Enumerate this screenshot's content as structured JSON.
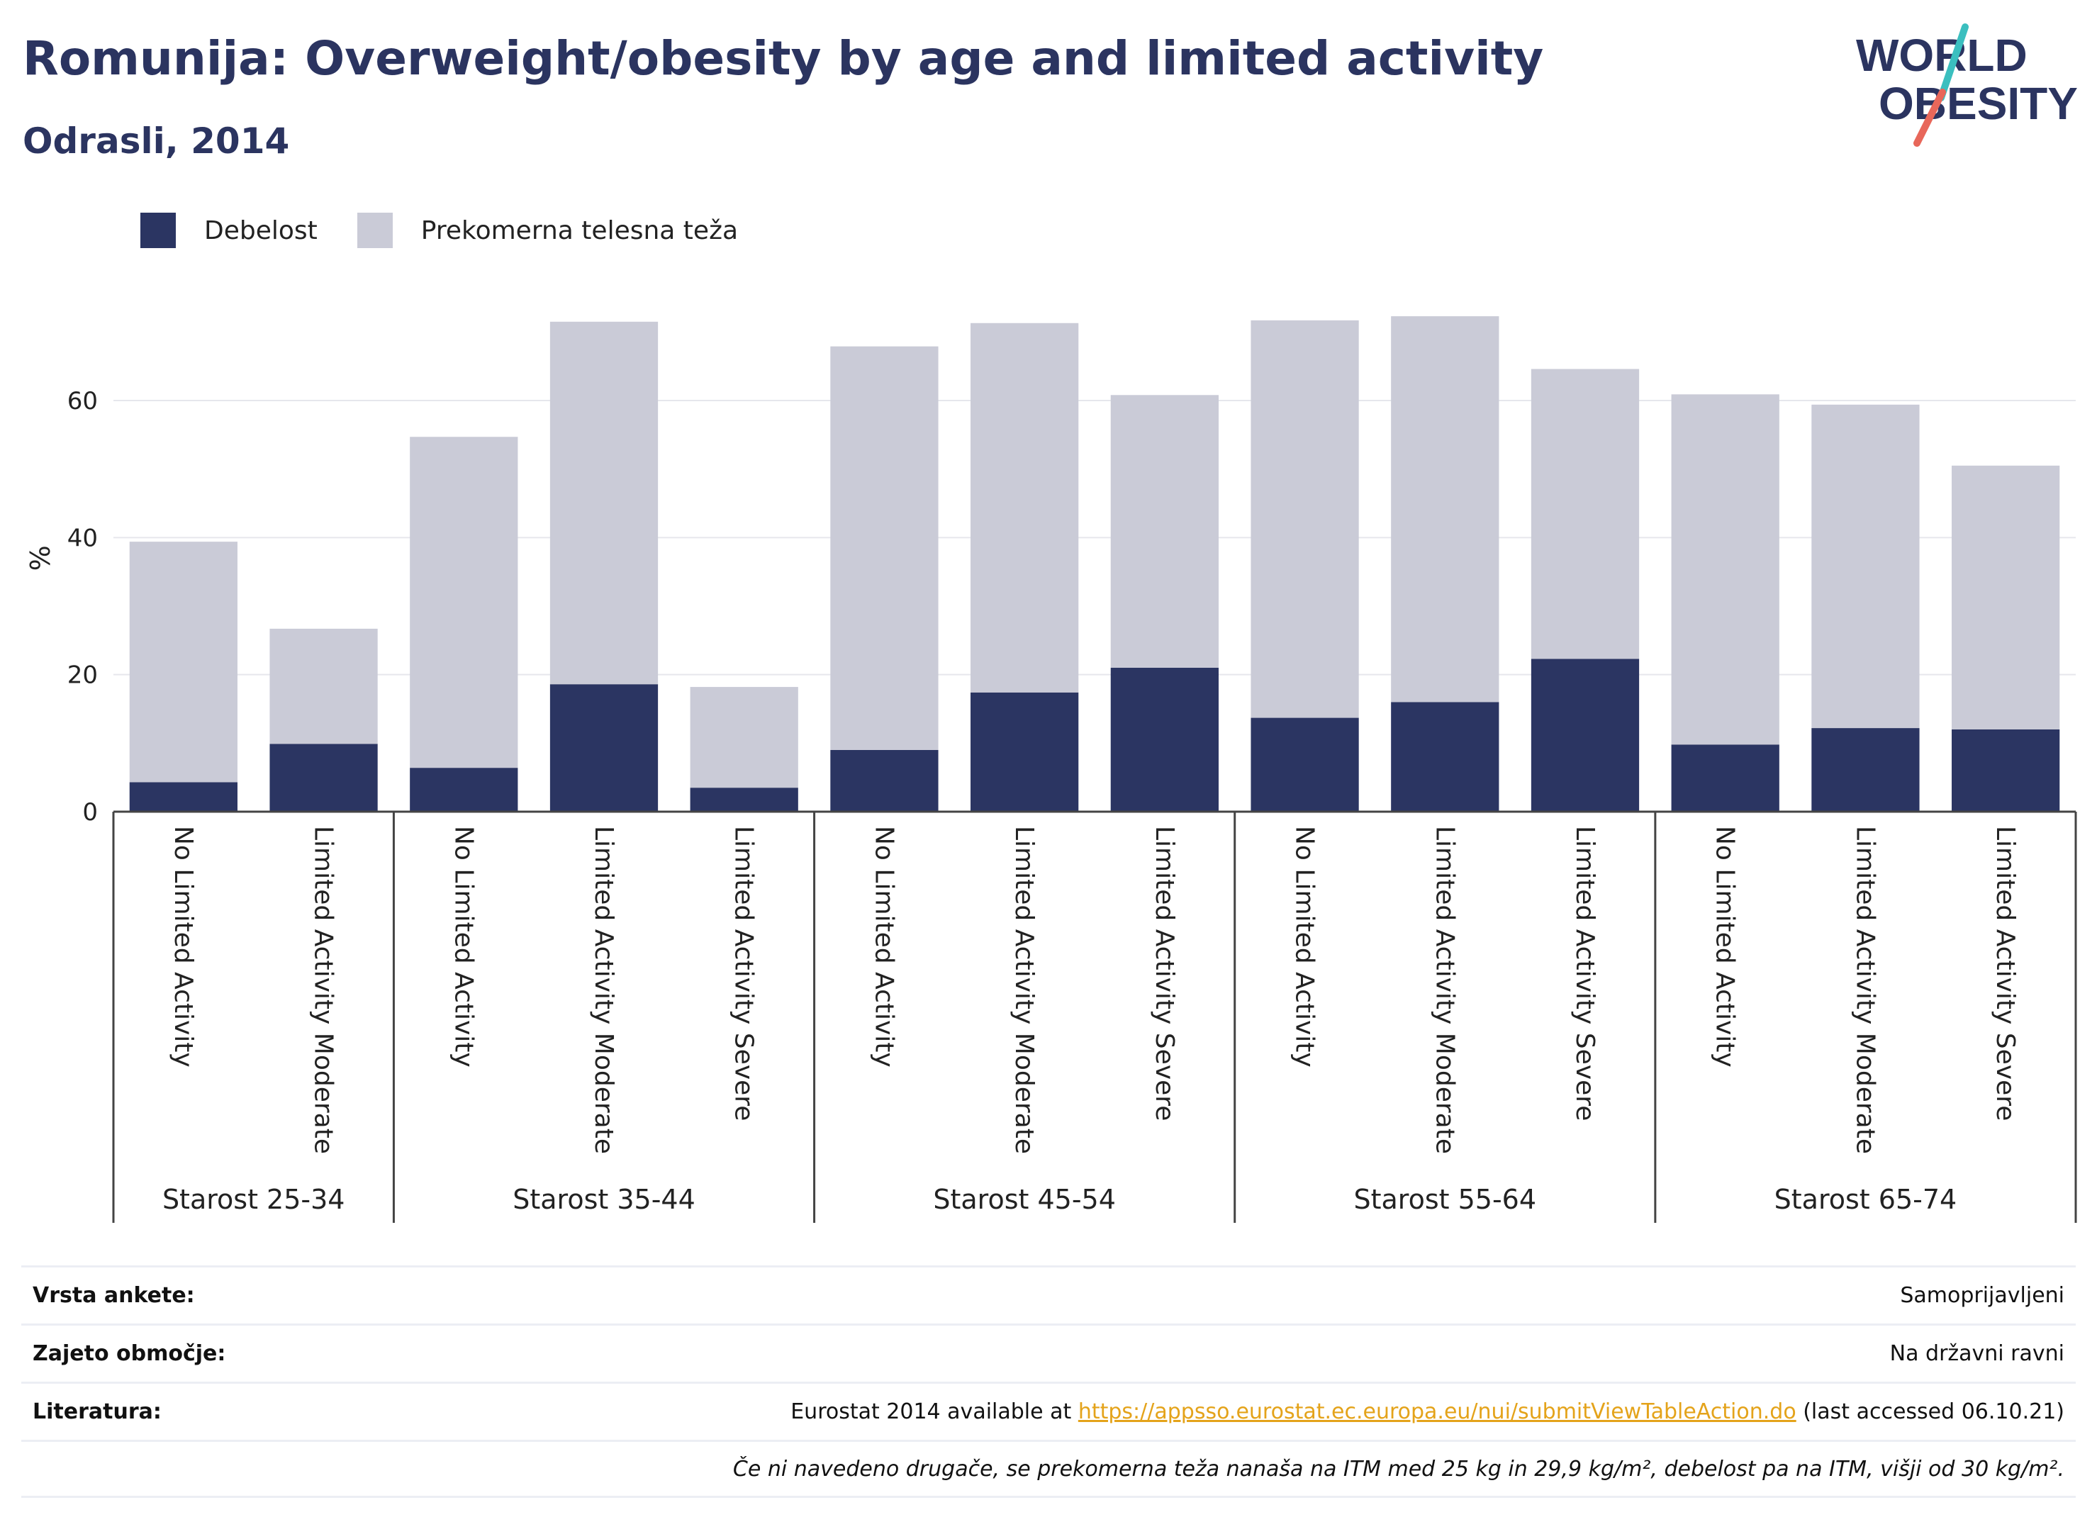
{
  "header": {
    "title": "Romunija: Overweight/obesity by age and limited activity",
    "subtitle": "Odrasli, 2014"
  },
  "logo": {
    "line1": "WORLD",
    "line2": "OBESITY"
  },
  "legend": [
    {
      "label": "Debelost",
      "color": "#2b3562"
    },
    {
      "label": "Prekomerna telesna teža",
      "color": "#cacbd7"
    }
  ],
  "chart_data": {
    "type": "bar",
    "stacked": true,
    "ylabel": "%",
    "ylim": [
      0,
      75
    ],
    "yticks": [
      0,
      20,
      40,
      60
    ],
    "grid": true,
    "legend_position": "top-left",
    "groups": [
      {
        "label": "Starost 25-34",
        "categories": [
          "No Limited Activity",
          "Limited Activity Moderate"
        ]
      },
      {
        "label": "Starost 35-44",
        "categories": [
          "No Limited Activity",
          "Limited Activity Moderate",
          "Limited Activity Severe"
        ]
      },
      {
        "label": "Starost 45-54",
        "categories": [
          "No Limited Activity",
          "Limited Activity Moderate",
          "Limited Activity Severe"
        ]
      },
      {
        "label": "Starost 55-64",
        "categories": [
          "No Limited Activity",
          "Limited Activity Moderate",
          "Limited Activity Severe"
        ]
      },
      {
        "label": "Starost 65-74",
        "categories": [
          "No Limited Activity",
          "Limited Activity Moderate",
          "Limited Activity Severe"
        ]
      }
    ],
    "series": [
      {
        "name": "Debelost",
        "color": "#2b3562",
        "values": [
          4.3,
          9.9,
          6.4,
          18.6,
          3.5,
          9.0,
          17.4,
          21.0,
          13.7,
          16.0,
          22.3,
          9.8,
          12.2,
          12.0
        ]
      },
      {
        "name": "Prekomerna telesna teža",
        "color": "#cacbd7",
        "values": [
          35.1,
          16.8,
          48.3,
          52.9,
          14.7,
          58.9,
          53.9,
          39.8,
          58.0,
          56.3,
          42.3,
          51.1,
          47.2,
          38.5
        ]
      }
    ]
  },
  "meta": {
    "rows": [
      {
        "label": "Vrsta ankete:",
        "value": "Samoprijavljeni"
      },
      {
        "label": "Zajeto območje:",
        "value": "Na državni ravni"
      }
    ],
    "literature": {
      "label": "Literatura:",
      "prefix": "Eurostat 2014 available at ",
      "link": "https://appsso.eurostat.ec.europa.eu/nui/submitViewTableAction.do",
      "suffix": " (last accessed 06.10.21)"
    },
    "note": "Če ni navedeno drugače, se prekomerna teža nanaša na ITM med 25 kg in 29,9 kg/m², debelost pa na ITM, višji od 30 kg/m²."
  }
}
